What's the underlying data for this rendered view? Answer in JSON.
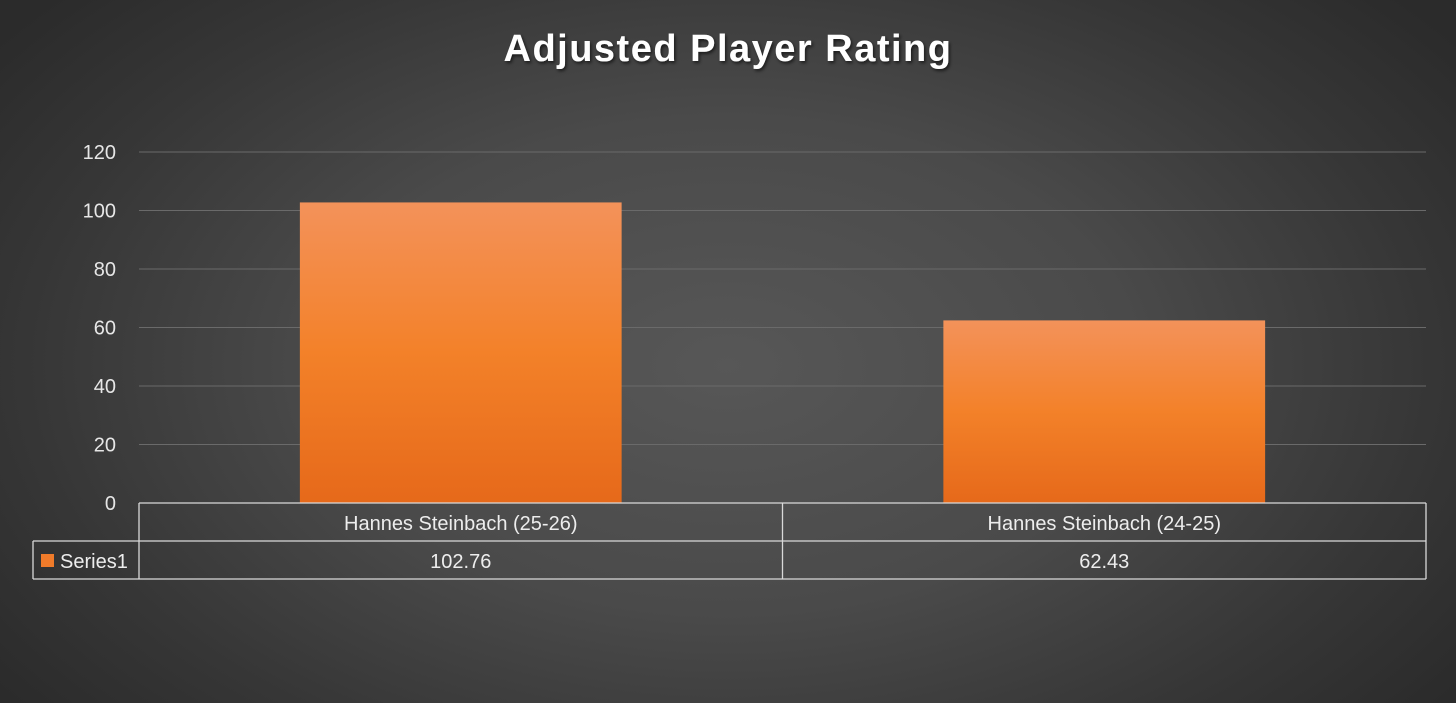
{
  "chart_data": {
    "type": "bar",
    "title": "Adjusted Player Rating",
    "categories": [
      "Hannes Steinbach (25-26)",
      "Hannes Steinbach (24-25)"
    ],
    "series": [
      {
        "name": "Series1",
        "values": [
          102.76,
          62.43
        ],
        "value_labels": [
          "102.76",
          "62.43"
        ],
        "color": "#f07b2a"
      }
    ],
    "y_ticks": [
      "0",
      "20",
      "40",
      "60",
      "80",
      "100",
      "120"
    ],
    "ylim": [
      0,
      120
    ],
    "grid": true,
    "legend": "data-table"
  },
  "colors": {
    "bar_top": "#f3925a",
    "bar_mid": "#f38129",
    "bar_bottom": "#e6691a",
    "gridline": "#6a6a6a",
    "table_border": "#d9d9d9"
  }
}
